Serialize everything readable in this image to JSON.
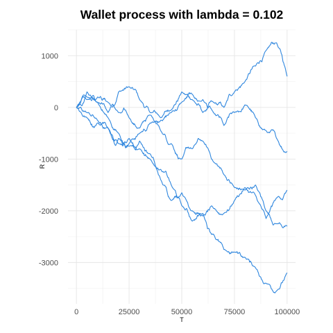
{
  "chart_data": {
    "type": "line",
    "title": "Wallet process with lambda =  0.102",
    "xlabel": "T",
    "ylabel": "R",
    "xlim": [
      -4000,
      104000
    ],
    "ylim": [
      -3800,
      1500
    ],
    "x_ticks": [
      0,
      25000,
      50000,
      75000,
      100000
    ],
    "x_tick_labels": [
      "0",
      "25000",
      "50000",
      "75000",
      "100000"
    ],
    "y_ticks": [
      1000,
      0,
      -1000,
      -2000,
      -3000
    ],
    "y_tick_labels": [
      "1000",
      "0",
      "-1000",
      "-2000",
      "-3000"
    ],
    "grid": true,
    "line_color": "#2e86de",
    "series": [
      {
        "x": [
          0,
          5000,
          10000,
          15000,
          20000,
          25000,
          30000,
          35000,
          40000,
          45000,
          50000,
          55000,
          60000,
          65000,
          70000,
          75000,
          80000,
          85000,
          90000,
          95000,
          100000
        ],
        "values": [
          0,
          150,
          100,
          -100,
          300,
          400,
          150,
          -100,
          -200,
          -50,
          300,
          150,
          -100,
          100,
          0,
          300,
          500,
          800,
          1100,
          1250,
          600
        ]
      },
      {
        "x": [
          0,
          5000,
          10000,
          15000,
          20000,
          25000,
          30000,
          35000,
          40000,
          45000,
          50000,
          55000,
          60000,
          65000,
          70000,
          75000,
          80000,
          85000,
          90000,
          95000,
          100000
        ],
        "values": [
          0,
          300,
          200,
          100,
          -100,
          -200,
          -400,
          -150,
          -250,
          -100,
          100,
          250,
          150,
          -100,
          -350,
          -100,
          50,
          -200,
          -450,
          -600,
          -850
        ]
      },
      {
        "x": [
          0,
          5000,
          10000,
          15000,
          20000,
          25000,
          30000,
          35000,
          40000,
          45000,
          50000,
          55000,
          60000,
          65000,
          70000,
          75000,
          80000,
          85000,
          90000,
          95000,
          100000
        ],
        "values": [
          0,
          -200,
          -300,
          -400,
          -600,
          -700,
          -500,
          -300,
          -450,
          -700,
          -1000,
          -800,
          -650,
          -1050,
          -1300,
          -1550,
          -1600,
          -1500,
          -2000,
          -2250,
          -2300
        ]
      },
      {
        "x": [
          0,
          5000,
          10000,
          15000,
          20000,
          25000,
          30000,
          35000,
          40000,
          45000,
          50000,
          55000,
          60000,
          65000,
          70000,
          75000,
          80000,
          85000,
          90000,
          95000,
          100000
        ],
        "values": [
          0,
          -100,
          -250,
          -400,
          -700,
          -600,
          -800,
          -1000,
          -1400,
          -1800,
          -1650,
          -2000,
          -2100,
          -1950,
          -2050,
          -1800,
          -1550,
          -1700,
          -2150,
          -1750,
          -1600
        ]
      },
      {
        "x": [
          0,
          5000,
          10000,
          15000,
          20000,
          25000,
          30000,
          35000,
          40000,
          45000,
          50000,
          55000,
          60000,
          65000,
          70000,
          75000,
          80000,
          85000,
          90000,
          95000,
          100000
        ],
        "values": [
          0,
          200,
          100,
          -200,
          -500,
          -750,
          -650,
          -900,
          -1200,
          -1500,
          -1900,
          -2200,
          -2050,
          -2450,
          -2750,
          -2800,
          -2900,
          -3100,
          -3400,
          -3550,
          -3200
        ]
      }
    ]
  }
}
